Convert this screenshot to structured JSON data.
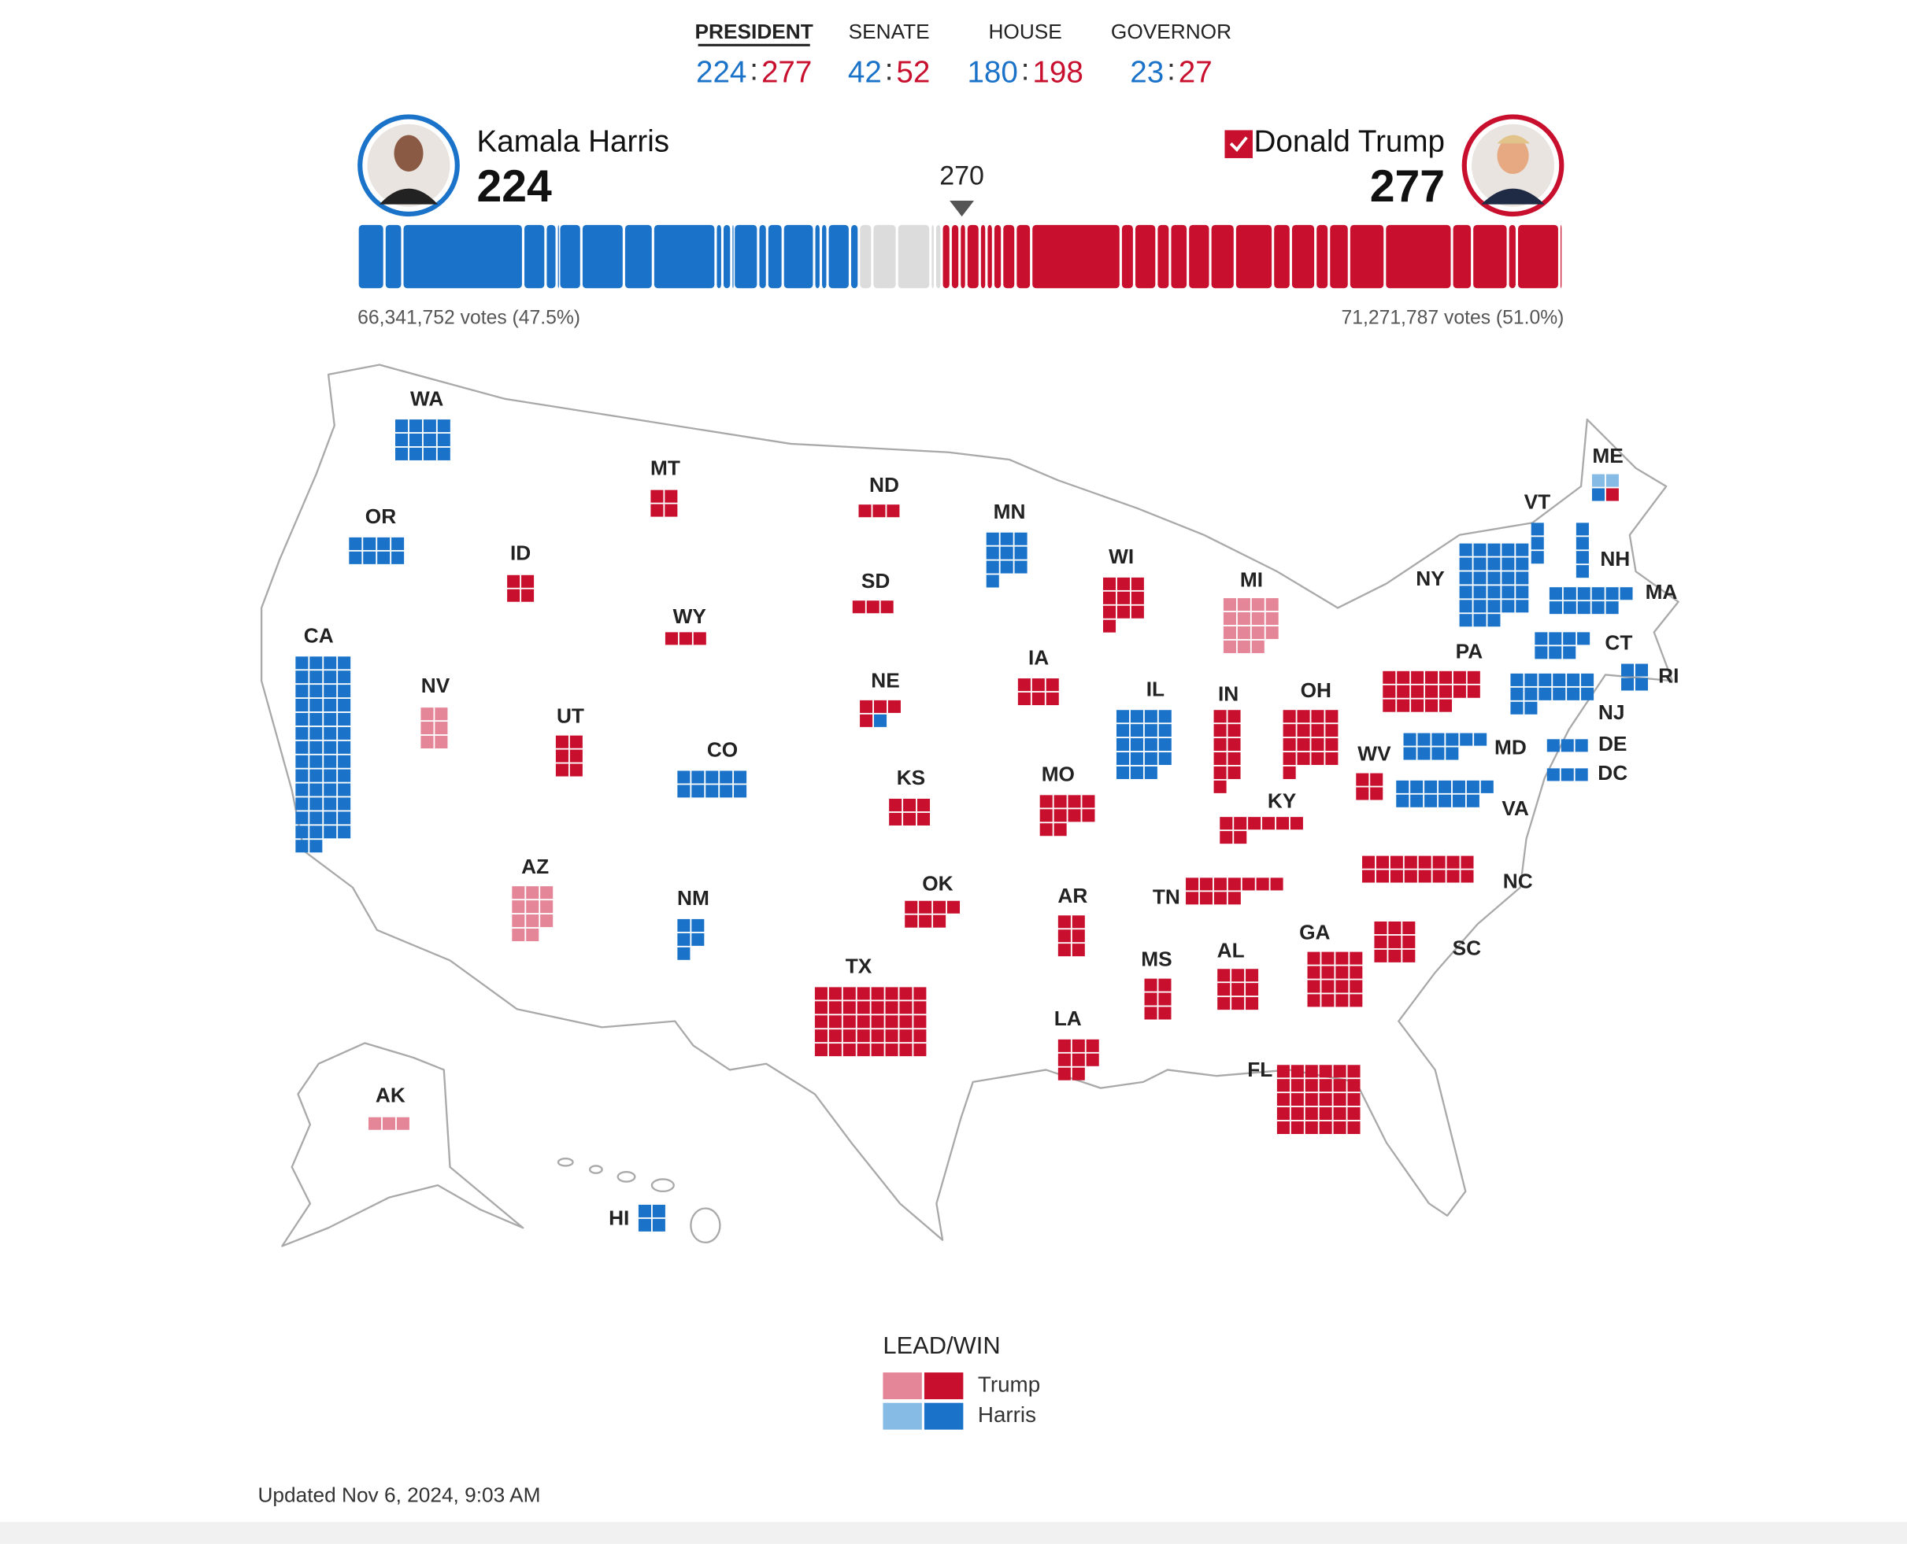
{
  "tabs": [
    {
      "label": "PRESIDENT",
      "active": true,
      "harris": 224,
      "trump": 277
    },
    {
      "label": "SENATE",
      "active": false,
      "harris": 42,
      "trump": 52
    },
    {
      "label": "HOUSE",
      "active": false,
      "harris": 180,
      "trump": 198
    },
    {
      "label": "GOVERNOR",
      "active": false,
      "harris": 23,
      "trump": 27
    }
  ],
  "separator": ":",
  "candidates": {
    "harris": {
      "name": "Kamala Harris",
      "electoral_votes": 224,
      "votes_label": "66,341,752 votes (47.5%)",
      "color": "#1a73c9"
    },
    "trump": {
      "name": "Donald Trump",
      "electoral_votes": 277,
      "votes_label": "71,271,787 votes (51.0%)",
      "color": "#c8102e",
      "called": true
    }
  },
  "threshold": 270,
  "colors": {
    "harris-win": "#1a73c9",
    "harris-lead": "#86bbe6",
    "trump-win": "#c8102e",
    "trump-lead": "#e48598",
    "pending": "#dcdcdc"
  },
  "states": [
    {
      "label": "WA",
      "allocations": [
        {
          "result": "harris-win",
          "ev": 12
        }
      ]
    },
    {
      "label": "OR",
      "allocations": [
        {
          "result": "harris-win",
          "ev": 8
        }
      ]
    },
    {
      "label": "CA",
      "allocations": [
        {
          "result": "harris-win",
          "ev": 54
        }
      ]
    },
    {
      "label": "NV",
      "allocations": [
        {
          "result": "trump-lead",
          "ev": 6
        }
      ]
    },
    {
      "label": "ID",
      "allocations": [
        {
          "result": "trump-win",
          "ev": 4
        }
      ]
    },
    {
      "label": "MT",
      "allocations": [
        {
          "result": "trump-win",
          "ev": 4
        }
      ]
    },
    {
      "label": "WY",
      "allocations": [
        {
          "result": "trump-win",
          "ev": 3
        }
      ]
    },
    {
      "label": "UT",
      "allocations": [
        {
          "result": "trump-win",
          "ev": 6
        }
      ]
    },
    {
      "label": "CO",
      "allocations": [
        {
          "result": "harris-win",
          "ev": 10
        }
      ]
    },
    {
      "label": "AZ",
      "allocations": [
        {
          "result": "trump-lead",
          "ev": 11
        }
      ]
    },
    {
      "label": "NM",
      "allocations": [
        {
          "result": "harris-win",
          "ev": 5
        }
      ]
    },
    {
      "label": "ND",
      "allocations": [
        {
          "result": "trump-win",
          "ev": 3
        }
      ]
    },
    {
      "label": "SD",
      "allocations": [
        {
          "result": "trump-win",
          "ev": 3
        }
      ]
    },
    {
      "label": "NE",
      "allocations": [
        {
          "result": "trump-win",
          "ev": 4
        },
        {
          "result": "harris-win",
          "ev": 1
        }
      ]
    },
    {
      "label": "KS",
      "allocations": [
        {
          "result": "trump-win",
          "ev": 6
        }
      ]
    },
    {
      "label": "OK",
      "allocations": [
        {
          "result": "trump-win",
          "ev": 7
        }
      ]
    },
    {
      "label": "TX",
      "allocations": [
        {
          "result": "trump-win",
          "ev": 40
        }
      ]
    },
    {
      "label": "MN",
      "allocations": [
        {
          "result": "harris-win",
          "ev": 10
        }
      ]
    },
    {
      "label": "IA",
      "allocations": [
        {
          "result": "trump-win",
          "ev": 6
        }
      ]
    },
    {
      "label": "MO",
      "allocations": [
        {
          "result": "trump-win",
          "ev": 10
        }
      ]
    },
    {
      "label": "AR",
      "allocations": [
        {
          "result": "trump-win",
          "ev": 6
        }
      ]
    },
    {
      "label": "LA",
      "allocations": [
        {
          "result": "trump-win",
          "ev": 8
        }
      ]
    },
    {
      "label": "WI",
      "allocations": [
        {
          "result": "trump-win",
          "ev": 10
        }
      ]
    },
    {
      "label": "IL",
      "allocations": [
        {
          "result": "harris-win",
          "ev": 19
        }
      ]
    },
    {
      "label": "MI",
      "allocations": [
        {
          "result": "trump-lead",
          "ev": 15
        }
      ]
    },
    {
      "label": "IN",
      "allocations": [
        {
          "result": "trump-win",
          "ev": 11
        }
      ]
    },
    {
      "label": "OH",
      "allocations": [
        {
          "result": "trump-win",
          "ev": 17
        }
      ]
    },
    {
      "label": "KY",
      "allocations": [
        {
          "result": "trump-win",
          "ev": 8
        }
      ]
    },
    {
      "label": "TN",
      "allocations": [
        {
          "result": "trump-win",
          "ev": 11
        }
      ]
    },
    {
      "label": "MS",
      "allocations": [
        {
          "result": "trump-win",
          "ev": 6
        }
      ]
    },
    {
      "label": "AL",
      "allocations": [
        {
          "result": "trump-win",
          "ev": 9
        }
      ]
    },
    {
      "label": "GA",
      "allocations": [
        {
          "result": "trump-win",
          "ev": 16
        }
      ]
    },
    {
      "label": "FL",
      "allocations": [
        {
          "result": "trump-win",
          "ev": 30
        }
      ]
    },
    {
      "label": "SC",
      "allocations": [
        {
          "result": "trump-win",
          "ev": 9
        }
      ]
    },
    {
      "label": "NC",
      "allocations": [
        {
          "result": "trump-win",
          "ev": 16
        }
      ]
    },
    {
      "label": "WV",
      "allocations": [
        {
          "result": "trump-win",
          "ev": 4
        }
      ]
    },
    {
      "label": "VA",
      "allocations": [
        {
          "result": "harris-win",
          "ev": 13
        }
      ]
    },
    {
      "label": "PA",
      "allocations": [
        {
          "result": "trump-win",
          "ev": 19
        }
      ]
    },
    {
      "label": "NY",
      "allocations": [
        {
          "result": "harris-win",
          "ev": 28
        }
      ]
    },
    {
      "label": "VT",
      "allocations": [
        {
          "result": "harris-win",
          "ev": 3
        }
      ]
    },
    {
      "label": "NH",
      "allocations": [
        {
          "result": "harris-win",
          "ev": 4
        }
      ]
    },
    {
      "label": "ME",
      "allocations": [
        {
          "result": "harris-lead",
          "ev": 2
        },
        {
          "result": "harris-win",
          "ev": 1
        },
        {
          "result": "trump-win",
          "ev": 1
        }
      ]
    },
    {
      "label": "MA",
      "allocations": [
        {
          "result": "harris-win",
          "ev": 11
        }
      ]
    },
    {
      "label": "RI",
      "allocations": [
        {
          "result": "harris-win",
          "ev": 4
        }
      ]
    },
    {
      "label": "CT",
      "allocations": [
        {
          "result": "harris-win",
          "ev": 7
        }
      ]
    },
    {
      "label": "NJ",
      "allocations": [
        {
          "result": "harris-win",
          "ev": 14
        }
      ]
    },
    {
      "label": "DE",
      "allocations": [
        {
          "result": "harris-win",
          "ev": 3
        }
      ]
    },
    {
      "label": "DC",
      "allocations": [
        {
          "result": "harris-win",
          "ev": 3
        }
      ]
    },
    {
      "label": "MD",
      "allocations": [
        {
          "result": "harris-win",
          "ev": 10
        }
      ]
    },
    {
      "label": "AK",
      "allocations": [
        {
          "result": "trump-lead",
          "ev": 3
        }
      ]
    },
    {
      "label": "HI",
      "allocations": [
        {
          "result": "harris-win",
          "ev": 4
        }
      ]
    }
  ],
  "legend": {
    "title": "LEAD/WIN",
    "items": [
      {
        "label": "Trump",
        "lead": "trump-lead",
        "win": "trump-win"
      },
      {
        "label": "Harris",
        "lead": "harris-lead",
        "win": "harris-win"
      }
    ]
  },
  "updated": "Updated Nov 6, 2024, 9:03 AM"
}
